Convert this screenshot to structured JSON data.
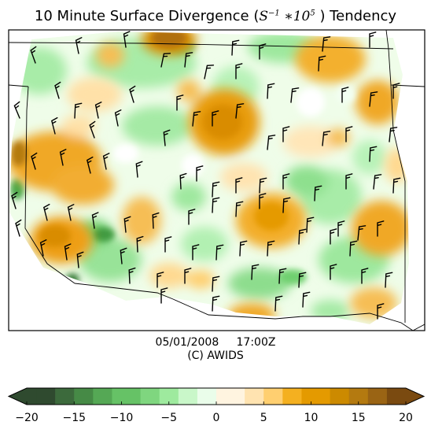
{
  "title": {
    "prefix": "10 Minute Surface Divergence (",
    "math_s": "S",
    "math_s_exp": "−1",
    "math_mid": " ∗10",
    "math_ten_exp": "5",
    "suffix": " ) Tendency"
  },
  "caption": {
    "date": "05/01/2008",
    "time": "17:00Z",
    "credit": "(C) AWIDS"
  },
  "colorbar": {
    "min": -20,
    "max": 20,
    "ticks": [
      "−20",
      "−15",
      "−10",
      "−5",
      "0",
      "5",
      "10",
      "15",
      "20"
    ],
    "tick_values": [
      -20,
      -15,
      -10,
      -5,
      0,
      5,
      10,
      15,
      20
    ],
    "colors_neg": [
      "#2f4a2f",
      "#3c6a3c",
      "#468a46",
      "#55a855",
      "#66c266",
      "#7fd67f",
      "#9eea9e",
      "#c9f7c9",
      "#eafdea"
    ],
    "colors_pos": [
      "#fff4e0",
      "#ffe3b0",
      "#ffcf70",
      "#f4b020",
      "#e49a00",
      "#cc8a00",
      "#b47a10",
      "#9a6414",
      "#7a4a10"
    ]
  },
  "colors": {
    "frame": "#000000",
    "background": "#ffffff"
  }
}
